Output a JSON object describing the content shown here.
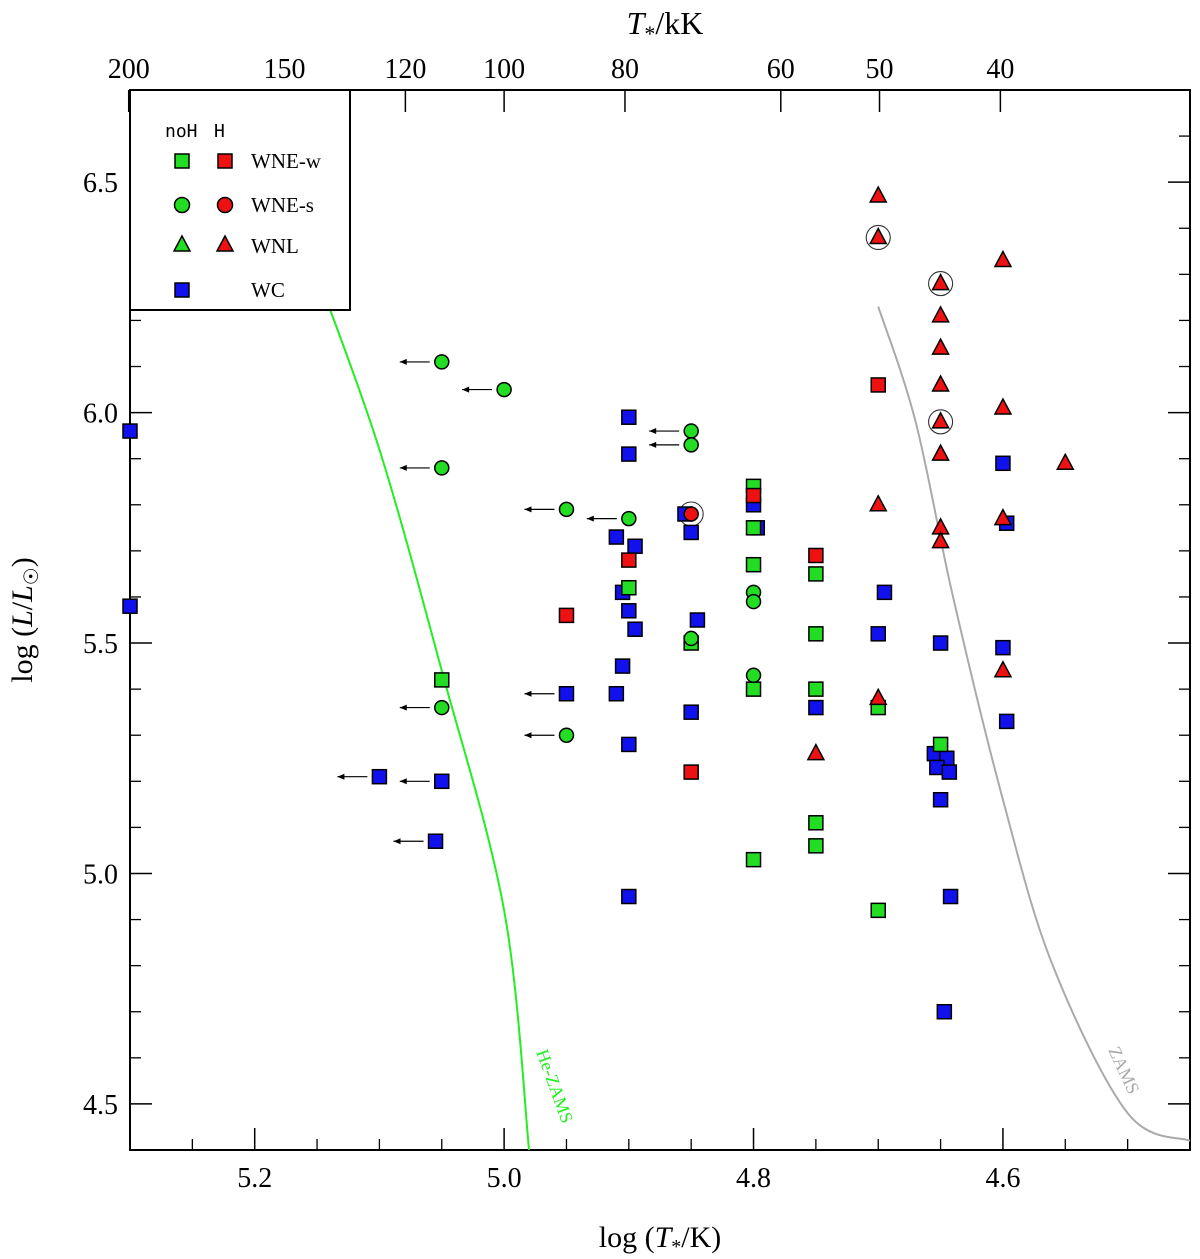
{
  "chart_data": {
    "type": "scatter",
    "title": "",
    "xlabel": "log (T*/K)",
    "ylabel": "log (L/L☉)",
    "top_axis_label": "T*/kK",
    "xlim": [
      5.3,
      4.45
    ],
    "ylim": [
      4.4,
      6.7
    ],
    "x_ticks": [
      5.2,
      5.0,
      4.8,
      4.6
    ],
    "x_tick_labels": [
      "5.2",
      "5.0",
      "4.8",
      "4.6"
    ],
    "y_ticks": [
      4.5,
      5.0,
      5.5,
      6.0,
      6.5
    ],
    "y_tick_labels": [
      "4.5",
      "5.0",
      "5.5",
      "6.0",
      "6.5"
    ],
    "top_ticks_kK": [
      200,
      150,
      120,
      100,
      80,
      60,
      50,
      40
    ],
    "top_tick_labels": [
      "200",
      "150",
      "120",
      "100",
      "80",
      "60",
      "50",
      "40"
    ],
    "legend": {
      "position": "top-left",
      "header_noH": "noH",
      "header_H": "H",
      "entries": [
        "WNE-w",
        "WNE-s",
        "WNL",
        "WC"
      ]
    },
    "colors": {
      "noH": "#22dd22",
      "H": "#ee1111",
      "WC": "#1111ee"
    },
    "curves": [
      {
        "name": "He-ZAMS",
        "label": "He-ZAMS",
        "color": "#22ee22",
        "points": [
          [
            5.15,
            6.3
          ],
          [
            5.1,
            5.92
          ],
          [
            5.05,
            5.44
          ],
          [
            5.0,
            4.92
          ],
          [
            4.98,
            4.4
          ]
        ]
      },
      {
        "name": "ZAMS",
        "label": "ZAMS",
        "color": "#aaaaaa",
        "points": [
          [
            4.7,
            6.23
          ],
          [
            4.67,
            5.98
          ],
          [
            4.64,
            5.6
          ],
          [
            4.6,
            5.16
          ],
          [
            4.56,
            4.8
          ],
          [
            4.5,
            4.48
          ],
          [
            4.45,
            4.42
          ]
        ]
      }
    ],
    "series": [
      {
        "name": "WNE-w noH",
        "marker": "square",
        "color": "#22dd22",
        "points": [
          [
            5.05,
            5.42
          ],
          [
            4.9,
            5.62
          ],
          [
            4.85,
            5.5
          ],
          [
            4.8,
            5.84
          ],
          [
            4.8,
            5.75
          ],
          [
            4.8,
            5.67
          ],
          [
            4.8,
            5.4
          ],
          [
            4.8,
            5.03
          ],
          [
            4.75,
            5.65
          ],
          [
            4.75,
            5.52
          ],
          [
            4.75,
            5.4
          ],
          [
            4.75,
            5.11
          ],
          [
            4.75,
            5.06
          ],
          [
            4.7,
            5.36
          ],
          [
            4.7,
            4.92
          ],
          [
            4.65,
            5.28
          ]
        ]
      },
      {
        "name": "WNE-w H",
        "marker": "square",
        "color": "#ee1111",
        "points": [
          [
            4.95,
            5.56
          ],
          [
            4.9,
            5.68
          ],
          [
            4.85,
            5.22
          ],
          [
            4.8,
            5.82
          ],
          [
            4.75,
            5.69
          ],
          [
            4.7,
            6.06
          ]
        ]
      },
      {
        "name": "WNE-s noH",
        "marker": "circle",
        "color": "#22dd22",
        "points": [
          [
            5.05,
            6.11
          ],
          [
            5.0,
            6.05
          ],
          [
            5.05,
            5.88
          ],
          [
            4.95,
            5.79
          ],
          [
            4.9,
            5.77
          ],
          [
            4.85,
            5.96
          ],
          [
            4.85,
            5.93
          ],
          [
            4.85,
            5.51
          ],
          [
            4.8,
            5.61
          ],
          [
            4.8,
            5.59
          ],
          [
            4.8,
            5.43
          ],
          [
            5.05,
            5.36
          ],
          [
            4.95,
            5.3
          ]
        ]
      },
      {
        "name": "WNE-s H",
        "marker": "circle",
        "color": "#ee1111",
        "points": [
          [
            4.85,
            5.78
          ]
        ]
      },
      {
        "name": "WNL H",
        "marker": "triangle",
        "color": "#ee1111",
        "points": [
          [
            4.7,
            6.47
          ],
          [
            4.7,
            6.38
          ],
          [
            4.7,
            5.8
          ],
          [
            4.7,
            5.38
          ],
          [
            4.65,
            6.28
          ],
          [
            4.65,
            6.21
          ],
          [
            4.65,
            6.14
          ],
          [
            4.65,
            6.06
          ],
          [
            4.65,
            5.98
          ],
          [
            4.65,
            5.91
          ],
          [
            4.65,
            5.75
          ],
          [
            4.65,
            5.72
          ],
          [
            4.6,
            6.33
          ],
          [
            4.6,
            6.01
          ],
          [
            4.6,
            5.77
          ],
          [
            4.6,
            5.44
          ],
          [
            4.55,
            5.89
          ],
          [
            4.75,
            5.26
          ]
        ]
      },
      {
        "name": "WC",
        "marker": "square",
        "color": "#1111ee",
        "points": [
          [
            5.3,
            5.96
          ],
          [
            5.3,
            5.58
          ],
          [
            5.1,
            5.21
          ],
          [
            5.05,
            5.2
          ],
          [
            5.055,
            5.07
          ],
          [
            4.9,
            5.99
          ],
          [
            4.9,
            5.91
          ],
          [
            4.91,
            5.73
          ],
          [
            4.905,
            5.61
          ],
          [
            4.9,
            5.57
          ],
          [
            4.895,
            5.71
          ],
          [
            4.895,
            5.53
          ],
          [
            4.905,
            5.45
          ],
          [
            4.91,
            5.39
          ],
          [
            4.9,
            5.28
          ],
          [
            4.9,
            4.95
          ],
          [
            4.95,
            5.39
          ],
          [
            4.855,
            5.78
          ],
          [
            4.85,
            5.74
          ],
          [
            4.845,
            5.55
          ],
          [
            4.85,
            5.35
          ],
          [
            4.8,
            5.8
          ],
          [
            4.797,
            5.75
          ],
          [
            4.75,
            5.36
          ],
          [
            4.695,
            5.61
          ],
          [
            4.7,
            5.52
          ],
          [
            4.65,
            5.5
          ],
          [
            4.655,
            5.26
          ],
          [
            4.645,
            5.25
          ],
          [
            4.653,
            5.23
          ],
          [
            4.643,
            5.22
          ],
          [
            4.65,
            5.16
          ],
          [
            4.642,
            4.95
          ],
          [
            4.647,
            4.7
          ],
          [
            4.6,
            5.89
          ],
          [
            4.597,
            5.76
          ],
          [
            4.6,
            5.49
          ],
          [
            4.597,
            5.33
          ]
        ]
      }
    ],
    "arrows": [
      [
        5.05,
        6.11
      ],
      [
        5.0,
        6.05
      ],
      [
        5.05,
        5.88
      ],
      [
        4.95,
        5.79
      ],
      [
        4.9,
        5.77
      ],
      [
        4.85,
        5.96
      ],
      [
        4.85,
        5.93
      ],
      [
        5.05,
        5.36
      ],
      [
        4.95,
        5.39
      ],
      [
        4.95,
        5.3
      ],
      [
        5.1,
        5.21
      ],
      [
        5.05,
        5.2
      ],
      [
        5.055,
        5.07
      ]
    ],
    "encircled": [
      [
        4.7,
        6.38
      ],
      [
        4.65,
        6.28
      ],
      [
        4.65,
        5.98
      ],
      [
        4.85,
        5.78
      ]
    ]
  }
}
